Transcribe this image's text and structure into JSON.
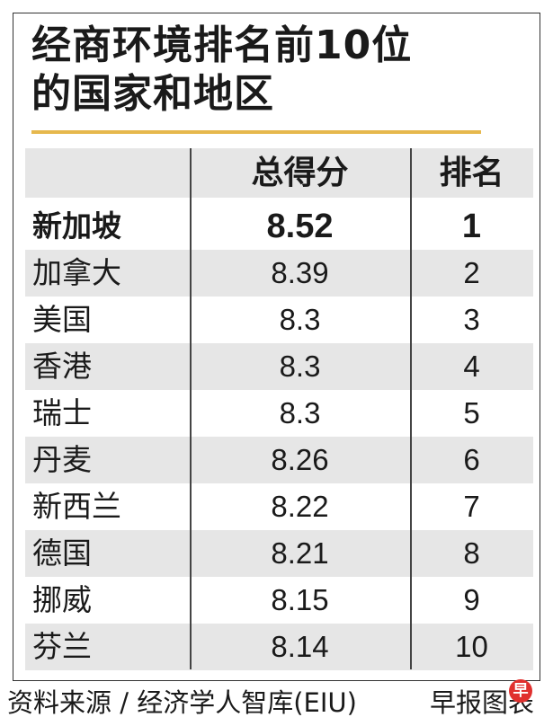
{
  "title_lines": [
    "经商环境排名前10位",
    "的国家和地区"
  ],
  "header": {
    "name": "",
    "score": "总得分",
    "rank": "排名"
  },
  "chart_data": {
    "type": "table",
    "columns": [
      "",
      "总得分",
      "排名"
    ],
    "rows": [
      {
        "name": "新加坡",
        "score": "8.52",
        "rank": "1"
      },
      {
        "name": "加拿大",
        "score": "8.39",
        "rank": "2"
      },
      {
        "name": "美国",
        "score": "8.3",
        "rank": "3"
      },
      {
        "name": "香港",
        "score": "8.3",
        "rank": "4"
      },
      {
        "name": "瑞士",
        "score": "8.3",
        "rank": "5"
      },
      {
        "name": "丹麦",
        "score": "8.26",
        "rank": "6"
      },
      {
        "name": "新西兰",
        "score": "8.22",
        "rank": "7"
      },
      {
        "name": "德国",
        "score": "8.21",
        "rank": "8"
      },
      {
        "name": "挪威",
        "score": "8.15",
        "rank": "9"
      },
      {
        "name": "芬兰",
        "score": "8.14",
        "rank": "10"
      }
    ]
  },
  "footer": {
    "source": "资料来源 / 经济学人智库(EIU)",
    "credit": "早报图表",
    "logo_mark": "早"
  },
  "colors": {
    "accent": "#e6b84d",
    "row_shade": "#e6e6e6",
    "logo": "#e0302e"
  }
}
